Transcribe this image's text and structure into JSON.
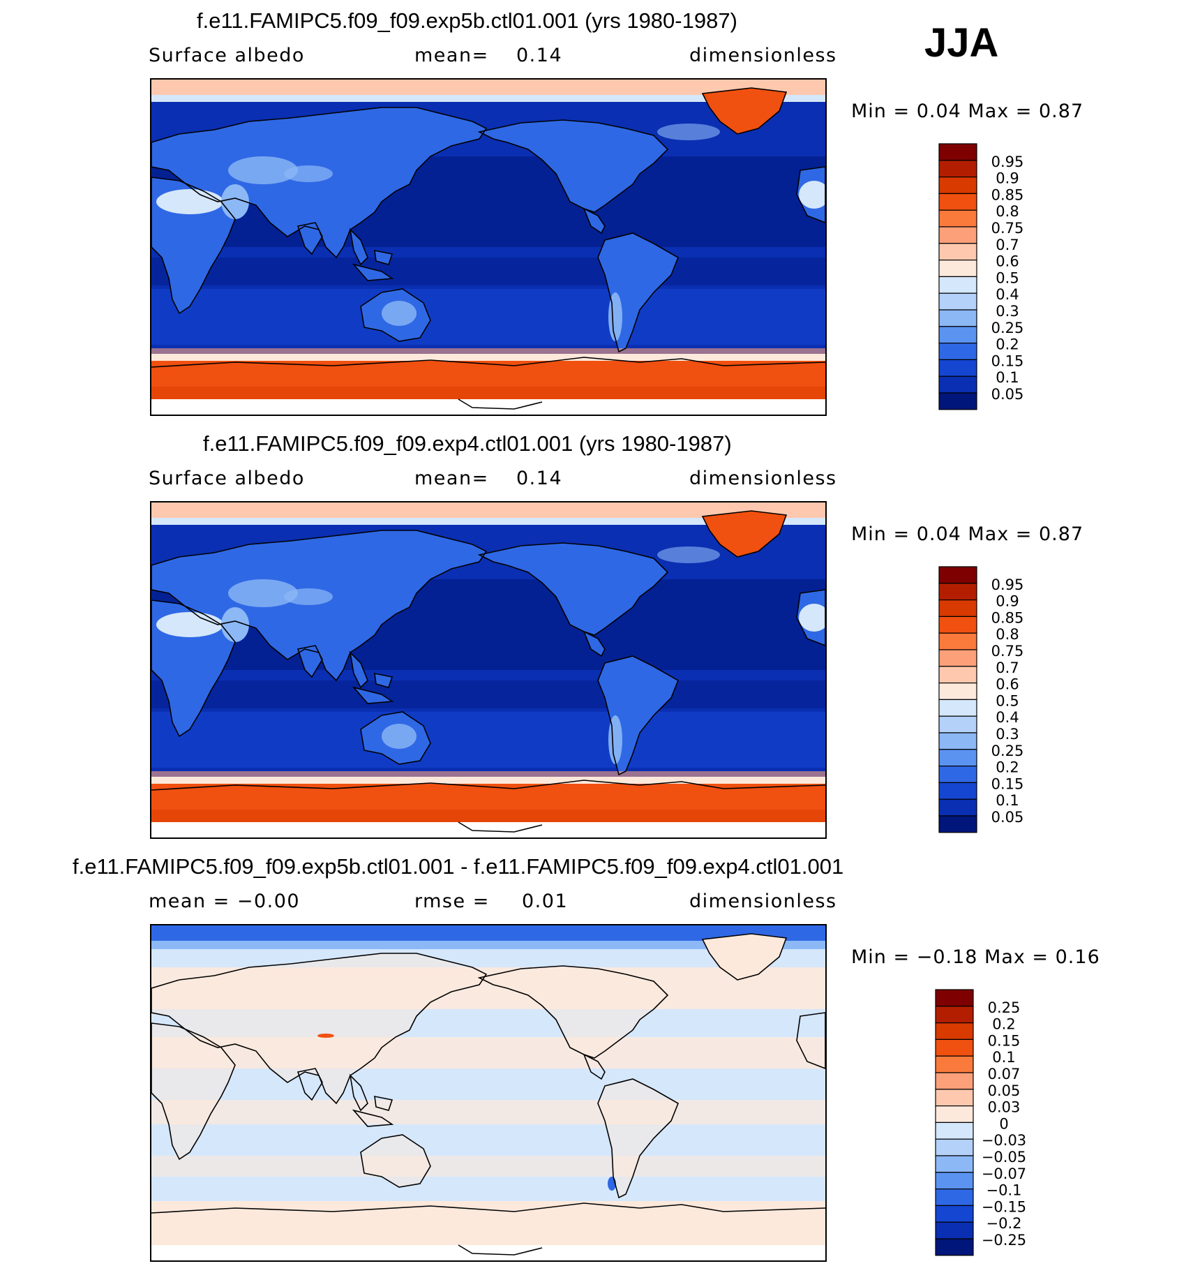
{
  "season": "JJA",
  "panels": [
    {
      "title": "f.e11.FAMIPC5.f09_f09.exp5b.ctl01.001 (yrs 1980-1987)",
      "left": "Surface albedo",
      "middle_label": "mean=",
      "middle_value": "0.14",
      "right": "dimensionless",
      "minmax": "Min =    0.04  Max =    0.87",
      "colorbar_labels": [
        "0.95",
        "0.9",
        "0.85",
        "0.8",
        "0.75",
        "0.7",
        "0.6",
        "0.5",
        "0.4",
        "0.3",
        "0.25",
        "0.2",
        "0.15",
        "0.1",
        "0.05"
      ],
      "colorbar_colors": [
        "#7e0000",
        "#b31e00",
        "#d83a00",
        "#f05010",
        "#fa7a3c",
        "#fca07a",
        "#fdc8ae",
        "#fde9dc",
        "#d5e7fb",
        "#b3d1f9",
        "#8cb8f6",
        "#5b93f1",
        "#2f68e5",
        "#1446d2",
        "#0a2fb2",
        "#00167a"
      ]
    },
    {
      "title": "f.e11.FAMIPC5.f09_f09.exp4.ctl01.001 (yrs 1980-1987)",
      "left": "Surface albedo",
      "middle_label": "mean=",
      "middle_value": "0.14",
      "right": "dimensionless",
      "minmax": "Min =    0.04  Max =    0.87",
      "colorbar_labels": [
        "0.95",
        "0.9",
        "0.85",
        "0.8",
        "0.75",
        "0.7",
        "0.6",
        "0.5",
        "0.4",
        "0.3",
        "0.25",
        "0.2",
        "0.15",
        "0.1",
        "0.05"
      ],
      "colorbar_colors": [
        "#7e0000",
        "#b31e00",
        "#d83a00",
        "#f05010",
        "#fa7a3c",
        "#fca07a",
        "#fdc8ae",
        "#fde9dc",
        "#d5e7fb",
        "#b3d1f9",
        "#8cb8f6",
        "#5b93f1",
        "#2f68e5",
        "#1446d2",
        "#0a2fb2",
        "#00167a"
      ]
    },
    {
      "title": "f.e11.FAMIPC5.f09_f09.exp5b.ctl01.001 - f.e11.FAMIPC5.f09_f09.exp4.ctl01.001",
      "left": "mean =   −0.00",
      "middle_label": "rmse =",
      "middle_value": "0.01",
      "right": "dimensionless",
      "minmax": "Min =   −0.18  Max =    0.16",
      "colorbar_labels": [
        "0.25",
        "0.2",
        "0.15",
        "0.1",
        "0.07",
        "0.05",
        "0.03",
        "0",
        "−0.03",
        "−0.05",
        "−0.07",
        "−0.1",
        "−0.15",
        "−0.2",
        "−0.25"
      ],
      "colorbar_colors": [
        "#7e0000",
        "#b31e00",
        "#d83a00",
        "#f05010",
        "#fa7a3c",
        "#fca07a",
        "#fdc8ae",
        "#fde9dc",
        "#d5e7fb",
        "#b3d1f9",
        "#8cb8f6",
        "#5b93f1",
        "#2f68e5",
        "#1446d2",
        "#0a2fb2",
        "#00167a"
      ]
    }
  ],
  "colors": {
    "ocean": "#0a2fb2",
    "ocean_deep": "#00167a",
    "ocean_mid": "#1446d2",
    "land": "#2f68e5",
    "land_bright": "#8cb8f6",
    "desert": "#d5e7fb",
    "ice": "#f05010",
    "ice_edge": "#fde9dc",
    "diff_pos": "#fde9dc",
    "diff_neg": "#d5e7fb"
  }
}
